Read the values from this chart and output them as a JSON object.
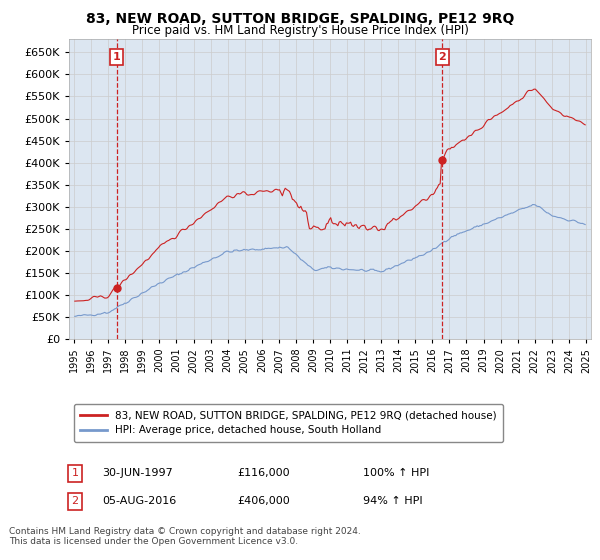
{
  "title": "83, NEW ROAD, SUTTON BRIDGE, SPALDING, PE12 9RQ",
  "subtitle": "Price paid vs. HM Land Registry's House Price Index (HPI)",
  "legend_line1": "83, NEW ROAD, SUTTON BRIDGE, SPALDING, PE12 9RQ (detached house)",
  "legend_line2": "HPI: Average price, detached house, South Holland",
  "annotation1_label": "1",
  "annotation1_date": "30-JUN-1997",
  "annotation1_price": "£116,000",
  "annotation1_hpi": "100% ↑ HPI",
  "annotation2_label": "2",
  "annotation2_date": "05-AUG-2016",
  "annotation2_price": "£406,000",
  "annotation2_hpi": "94% ↑ HPI",
  "footnote": "Contains HM Land Registry data © Crown copyright and database right 2024.\nThis data is licensed under the Open Government Licence v3.0.",
  "red_color": "#cc2222",
  "blue_color": "#7799cc",
  "grid_color": "#cccccc",
  "background_color": "#ffffff",
  "plot_bg_color": "#dce6f1",
  "ylim": [
    0,
    680000
  ],
  "yticks": [
    0,
    50000,
    100000,
    150000,
    200000,
    250000,
    300000,
    350000,
    400000,
    450000,
    500000,
    550000,
    600000,
    650000
  ],
  "sale1_x": 1997.5,
  "sale1_y": 116000,
  "sale2_x": 2016.583,
  "sale2_y": 406000,
  "vline1_x": 1997.5,
  "vline2_x": 2016.583,
  "xlim_left": 1994.7,
  "xlim_right": 2025.3
}
